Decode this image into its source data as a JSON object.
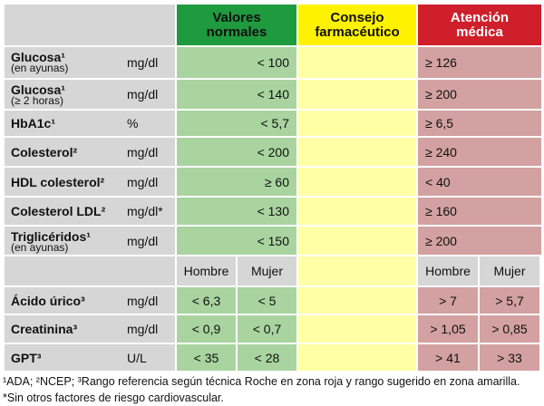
{
  "headers": {
    "valores": "Valores normales",
    "consejo": "Consejo farmacéutico",
    "atencion": "Atención médica"
  },
  "rows": [
    {
      "name": "Glucosa¹",
      "note": "(en ayunas)",
      "unit": "mg/dl",
      "normal": "< 100",
      "atencion": "≥ 126"
    },
    {
      "name": "Glucosa¹",
      "note": "(≥ 2 horas)",
      "unit": "mg/dl",
      "normal": "< 140",
      "atencion": "≥ 200"
    },
    {
      "name": "HbA1c¹",
      "unit": "%",
      "normal": "< 5,7",
      "atencion": "≥ 6,5"
    },
    {
      "name": "Colesterol²",
      "unit": "mg/dl",
      "normal": "< 200",
      "atencion": "≥ 240"
    },
    {
      "name": "HDL colesterol²",
      "unit": "mg/dl",
      "normal": "≥ 60",
      "atencion": "< 40"
    },
    {
      "name": "Colesterol LDL²",
      "unit": "mg/dl*",
      "normal": "< 130",
      "atencion": "≥ 160"
    },
    {
      "name": "Triglicéridos¹",
      "note": "(en ayunas)",
      "unit": "mg/dl",
      "normal": "< 150",
      "atencion": "≥ 200"
    }
  ],
  "sex": {
    "hombre": "Hombre",
    "mujer": "Mujer"
  },
  "rows2": [
    {
      "name": "Ácido úrico³",
      "unit": "mg/dl",
      "normal": [
        "< 6,3",
        "< 5"
      ],
      "atencion": [
        "> 7",
        "> 5,7"
      ]
    },
    {
      "name": "Creatinina³",
      "unit": "mg/dl",
      "normal": [
        "< 0,9",
        "< 0,7"
      ],
      "atencion": [
        "> 1,05",
        "> 0,85"
      ]
    },
    {
      "name": "GPT³",
      "unit": "U/L",
      "normal": [
        "< 35",
        "< 28"
      ],
      "atencion": [
        "> 41",
        "> 33"
      ]
    }
  ],
  "footnotes": [
    "¹ADA; ²NCEP; ³Rango referencia según técnica Roche en zona roja y rango sugerido en zona amarilla.",
    "*Sin otros factores de riesgo cardiovascular."
  ]
}
